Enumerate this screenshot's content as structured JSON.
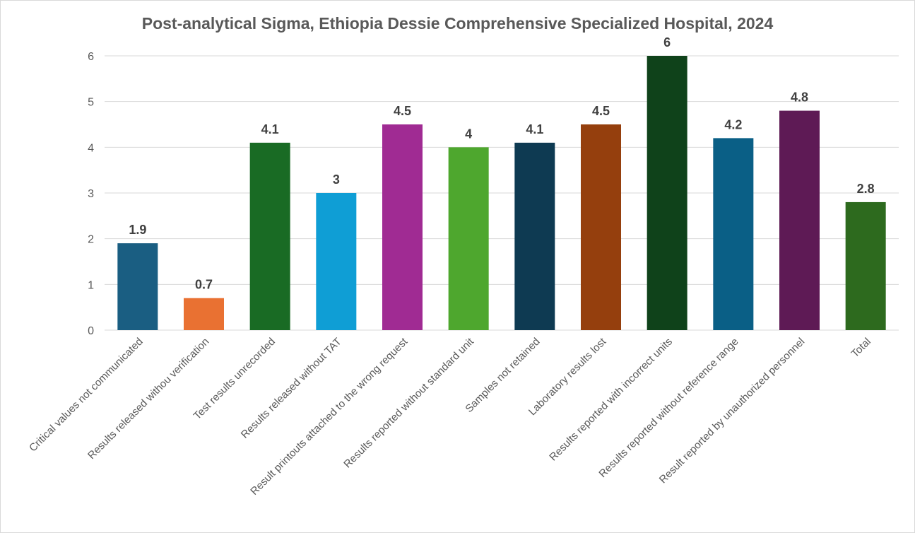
{
  "chart_data": {
    "type": "bar",
    "title": "Post-analytical Sigma, Ethiopia Dessie Comprehensive Specialized Hospital, 2024",
    "xlabel": "",
    "ylabel": "",
    "ylim": [
      0,
      6
    ],
    "yticks": [
      "0",
      "1",
      "2",
      "3",
      "4",
      "5",
      "6"
    ],
    "grid": true,
    "legend": "none",
    "categories": [
      "Critical values not communicated",
      "Results released withou verification",
      "Test results unrecorded",
      "Results released without TAT",
      "Result printouts attached to the wrong request",
      "Results reported without standard unit",
      "Samples not retained",
      "Laboratory results lost",
      "Results reported with incorrect units",
      "Results reported without reference range",
      "Result reported by unauthorized personnel",
      "Total"
    ],
    "values": [
      1.9,
      0.7,
      4.1,
      3,
      4.5,
      4,
      4.1,
      4.5,
      6,
      4.2,
      4.8,
      2.8
    ],
    "data_labels": [
      "1.9",
      "0.7",
      "4.1",
      "3",
      "4.5",
      "4",
      "4.1",
      "4.5",
      "6",
      "4.2",
      "4.8",
      "2.8"
    ],
    "colors": [
      "#1a5e82",
      "#e97132",
      "#196b24",
      "#0f9ed5",
      "#a02b93",
      "#4ea72e",
      "#0e3a52",
      "#953f0d",
      "#0f421a",
      "#0a5f86",
      "#5e1a55",
      "#2d6a1e"
    ]
  }
}
